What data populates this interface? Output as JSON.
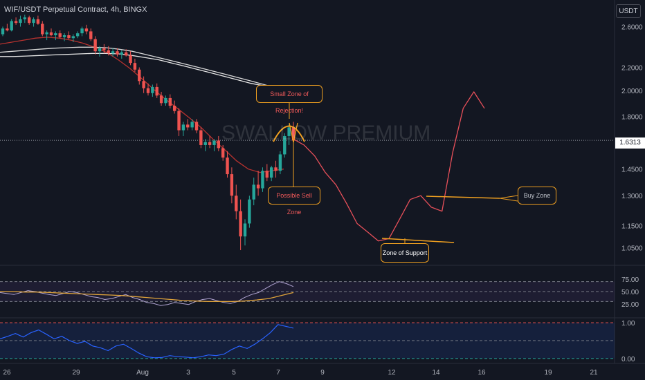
{
  "header": {
    "title": "WIF/USDT Perpetual Contract, 4h, BINGX",
    "currency_button": "USDT",
    "current_price": "1.6313",
    "watermark": "SWALLOW PREMIUM"
  },
  "annotations": {
    "rejection": "Small Zone of Rejection!",
    "sell": "Possible Sell Zone",
    "support": "Zone of Support",
    "buy": "Buy Zone"
  },
  "colors": {
    "background": "#131722",
    "bull": "#26a69a",
    "bear": "#ef5350",
    "annotation": "#f0a020",
    "rejection_text": "#f25a5a",
    "projection": "#e8505a"
  },
  "chart_data": [
    {
      "type": "candlestick",
      "title": "WIF/USDT Perpetual Contract, 4h, BINGX",
      "price_axis": {
        "ticks": [
          2.6,
          2.2,
          2.0,
          1.8,
          1.45,
          1.3,
          1.15,
          1.05
        ],
        "tick_labels": [
          "2.6000",
          "2.2000",
          "2.0000",
          "1.8000",
          "1.4500",
          "1.3000",
          "1.1500",
          "1.0500"
        ],
        "scale": "log",
        "range": [
          0.98,
          2.9
        ]
      },
      "x_axis": {
        "tick_labels": [
          "26",
          "29",
          "Aug",
          "3",
          "5",
          "7",
          "9",
          "12",
          "14",
          "16",
          "19",
          "21"
        ]
      },
      "last_price": 1.6313,
      "candles_ohlc": [
        [
          2.52,
          2.6,
          2.5,
          2.58
        ],
        [
          2.58,
          2.63,
          2.55,
          2.56
        ],
        [
          2.56,
          2.68,
          2.55,
          2.66
        ],
        [
          2.66,
          2.7,
          2.62,
          2.64
        ],
        [
          2.64,
          2.72,
          2.6,
          2.68
        ],
        [
          2.68,
          2.73,
          2.64,
          2.7
        ],
        [
          2.7,
          2.72,
          2.62,
          2.64
        ],
        [
          2.64,
          2.7,
          2.6,
          2.68
        ],
        [
          2.68,
          2.72,
          2.62,
          2.63
        ],
        [
          2.63,
          2.66,
          2.5,
          2.52
        ],
        [
          2.52,
          2.56,
          2.46,
          2.54
        ],
        [
          2.54,
          2.58,
          2.5,
          2.51
        ],
        [
          2.51,
          2.55,
          2.46,
          2.53
        ],
        [
          2.53,
          2.56,
          2.48,
          2.49
        ],
        [
          2.49,
          2.53,
          2.45,
          2.51
        ],
        [
          2.51,
          2.55,
          2.47,
          2.48
        ],
        [
          2.48,
          2.52,
          2.44,
          2.5
        ],
        [
          2.5,
          2.55,
          2.48,
          2.53
        ],
        [
          2.53,
          2.6,
          2.5,
          2.58
        ],
        [
          2.58,
          2.62,
          2.52,
          2.55
        ],
        [
          2.55,
          2.58,
          2.45,
          2.47
        ],
        [
          2.47,
          2.5,
          2.32,
          2.35
        ],
        [
          2.35,
          2.4,
          2.3,
          2.38
        ],
        [
          2.38,
          2.42,
          2.33,
          2.36
        ],
        [
          2.36,
          2.4,
          2.31,
          2.33
        ],
        [
          2.33,
          2.38,
          2.3,
          2.35
        ],
        [
          2.35,
          2.38,
          2.3,
          2.32
        ],
        [
          2.32,
          2.36,
          2.28,
          2.34
        ],
        [
          2.34,
          2.37,
          2.3,
          2.31
        ],
        [
          2.31,
          2.35,
          2.22,
          2.24
        ],
        [
          2.24,
          2.28,
          2.16,
          2.18
        ],
        [
          2.18,
          2.2,
          2.05,
          2.08
        ],
        [
          2.08,
          2.12,
          1.98,
          2.02
        ],
        [
          2.02,
          2.06,
          1.96,
          1.98
        ],
        [
          1.98,
          2.05,
          1.95,
          2.03
        ],
        [
          2.03,
          2.06,
          1.94,
          1.96
        ],
        [
          1.96,
          1.99,
          1.88,
          1.9
        ],
        [
          1.9,
          1.96,
          1.88,
          1.94
        ],
        [
          1.94,
          1.97,
          1.86,
          1.88
        ],
        [
          1.88,
          1.92,
          1.82,
          1.84
        ],
        [
          1.84,
          1.86,
          1.66,
          1.7
        ],
        [
          1.7,
          1.76,
          1.66,
          1.74
        ],
        [
          1.74,
          1.78,
          1.7,
          1.72
        ],
        [
          1.72,
          1.78,
          1.7,
          1.76
        ],
        [
          1.76,
          1.78,
          1.68,
          1.7
        ],
        [
          1.7,
          1.72,
          1.58,
          1.6
        ],
        [
          1.6,
          1.64,
          1.56,
          1.62
        ],
        [
          1.62,
          1.66,
          1.58,
          1.6
        ],
        [
          1.6,
          1.64,
          1.56,
          1.63
        ],
        [
          1.63,
          1.66,
          1.56,
          1.58
        ],
        [
          1.58,
          1.6,
          1.5,
          1.52
        ],
        [
          1.52,
          1.56,
          1.4,
          1.42
        ],
        [
          1.42,
          1.46,
          1.26,
          1.3
        ],
        [
          1.3,
          1.36,
          1.18,
          1.22
        ],
        [
          1.22,
          1.28,
          1.04,
          1.1
        ],
        [
          1.1,
          1.18,
          1.06,
          1.16
        ],
        [
          1.16,
          1.3,
          1.14,
          1.28
        ],
        [
          1.28,
          1.4,
          1.25,
          1.36
        ],
        [
          1.36,
          1.44,
          1.3,
          1.34
        ],
        [
          1.34,
          1.46,
          1.32,
          1.44
        ],
        [
          1.44,
          1.48,
          1.38,
          1.4
        ],
        [
          1.4,
          1.47,
          1.38,
          1.46
        ],
        [
          1.46,
          1.5,
          1.4,
          1.44
        ],
        [
          1.44,
          1.56,
          1.42,
          1.54
        ],
        [
          1.54,
          1.68,
          1.52,
          1.66
        ],
        [
          1.66,
          1.74,
          1.6,
          1.72
        ],
        [
          1.72,
          1.76,
          1.62,
          1.63
        ]
      ],
      "moving_averages": [
        {
          "color": "#b7322f",
          "values": [
            2.42,
            2.44,
            2.46,
            2.48,
            2.49,
            2.48,
            2.46,
            2.43,
            2.39,
            2.34,
            2.27,
            2.19,
            2.1,
            2.01,
            1.93,
            1.86,
            1.79,
            1.72,
            1.64,
            1.57,
            1.5,
            1.45,
            1.43,
            1.44,
            1.45
          ]
        },
        {
          "color": "#d8d8d8",
          "values": [
            2.34,
            2.35,
            2.36,
            2.37,
            2.38,
            2.385,
            2.39,
            2.39,
            2.385,
            2.37,
            2.35,
            2.32,
            2.29,
            2.26,
            2.23,
            2.2,
            2.17,
            2.14,
            2.11,
            2.08,
            2.05,
            2.02,
            2.0
          ]
        },
        {
          "color": "#e6e6e6",
          "values": [
            2.3,
            2.3,
            2.305,
            2.31,
            2.315,
            2.32,
            2.325,
            2.33,
            2.33,
            2.325,
            2.31,
            2.29,
            2.27,
            2.24,
            2.21,
            2.18,
            2.15,
            2.12,
            2.09,
            2.06,
            2.04,
            2.02,
            2.0
          ]
        }
      ],
      "projection_path": [
        1.64,
        1.6,
        1.53,
        1.43,
        1.36,
        1.26,
        1.16,
        1.12,
        1.08,
        1.09,
        1.18,
        1.28,
        1.3,
        1.24,
        1.22,
        1.55,
        1.86,
        1.99,
        1.86
      ]
    },
    {
      "type": "line",
      "name": "oscillator-1",
      "ylim": [
        0,
        100
      ],
      "ticks": [
        75,
        50,
        25
      ],
      "tick_labels": [
        "75.00",
        "50.00",
        "25.00"
      ],
      "series": [
        {
          "color": "#b2a6d4",
          "values": [
            48,
            46,
            44,
            48,
            52,
            50,
            47,
            44,
            42,
            46,
            50,
            48,
            44,
            40,
            38,
            34,
            36,
            40,
            44,
            38,
            34,
            28,
            26,
            22,
            24,
            28,
            26,
            24,
            30,
            34,
            36,
            32,
            28,
            26,
            30,
            38,
            44,
            48,
            56,
            64,
            70,
            66,
            60
          ]
        },
        {
          "color": "#e0a43a",
          "values": [
            50,
            50,
            49,
            49,
            48,
            47,
            46,
            45,
            44,
            43,
            42,
            40,
            38,
            36,
            34,
            32,
            31,
            30,
            30,
            30,
            31,
            33,
            36,
            42,
            48
          ]
        }
      ]
    },
    {
      "type": "line",
      "name": "oscillator-2",
      "ylim": [
        -0.1,
        1.1
      ],
      "ticks": [
        1.0,
        0.0
      ],
      "tick_labels": [
        "1.00",
        "0.00"
      ],
      "series": [
        {
          "color": "#2962ff",
          "values": [
            0.55,
            0.62,
            0.7,
            0.6,
            0.72,
            0.8,
            0.68,
            0.55,
            0.62,
            0.5,
            0.42,
            0.48,
            0.35,
            0.3,
            0.22,
            0.35,
            0.4,
            0.28,
            0.15,
            0.05,
            0.02,
            0.03,
            0.08,
            0.05,
            0.04,
            0.02,
            0.05,
            0.1,
            0.08,
            0.12,
            0.25,
            0.35,
            0.28,
            0.4,
            0.55,
            0.72,
            0.95,
            0.9,
            0.85
          ]
        }
      ]
    }
  ]
}
